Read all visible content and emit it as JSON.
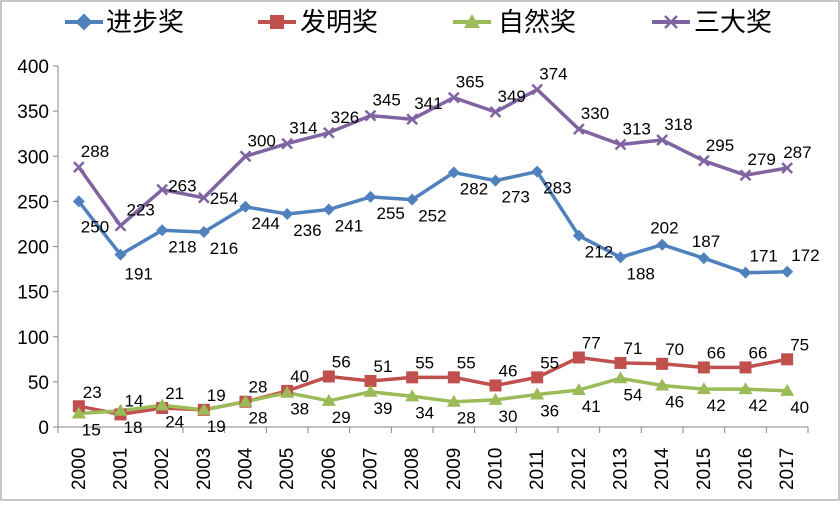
{
  "chart_data": {
    "type": "line",
    "title": "",
    "xlabel": "",
    "ylabel": "",
    "ylim": [
      0,
      400
    ],
    "yticks": [
      0,
      50,
      100,
      150,
      200,
      250,
      300,
      350,
      400
    ],
    "grid": false,
    "legend_position": "top",
    "categories": [
      "2000",
      "2001",
      "2002",
      "2003",
      "2004",
      "2005",
      "2006",
      "2007",
      "2008",
      "2009",
      "2010",
      "2011",
      "2012",
      "2013",
      "2014",
      "2015",
      "2016",
      "2017"
    ],
    "series": [
      {
        "name": "进步奖",
        "color": "#4F81BD",
        "marker": "diamond",
        "values": [
          250,
          191,
          218,
          216,
          244,
          236,
          241,
          255,
          252,
          282,
          273,
          283,
          212,
          188,
          202,
          187,
          171,
          172
        ]
      },
      {
        "name": "发明奖",
        "color": "#C0504D",
        "marker": "square",
        "values": [
          23,
          14,
          21,
          19,
          28,
          40,
          56,
          51,
          55,
          55,
          46,
          55,
          77,
          71,
          70,
          66,
          66,
          75
        ]
      },
      {
        "name": "自然奖",
        "color": "#9BBB59",
        "marker": "triangle",
        "values": [
          15,
          18,
          24,
          19,
          28,
          38,
          29,
          39,
          34,
          28,
          30,
          36,
          41,
          54,
          46,
          42,
          42,
          40
        ]
      },
      {
        "name": "三大奖",
        "color": "#8064A2",
        "marker": "x",
        "values": [
          288,
          223,
          263,
          254,
          300,
          314,
          326,
          345,
          341,
          365,
          349,
          374,
          330,
          313,
          318,
          295,
          279,
          287
        ]
      }
    ]
  }
}
